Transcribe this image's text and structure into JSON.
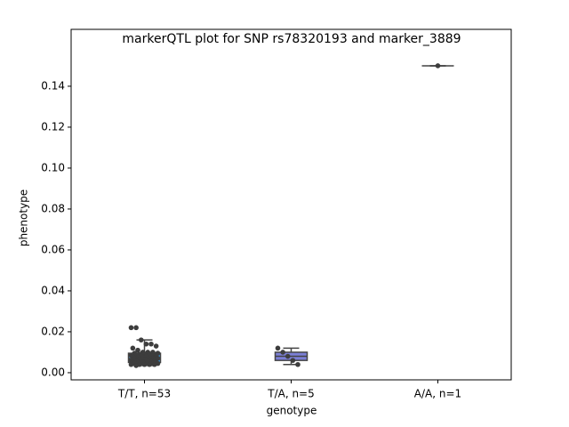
{
  "chart_data": {
    "type": "box",
    "title": "markerQTL plot for SNP rs78320193 and marker_3889",
    "xlabel": "genotype",
    "ylabel": "phenotype",
    "categories": [
      "T/T, n=53",
      "T/A, n=5",
      "A/A, n=1"
    ],
    "ylim": [
      -0.0035,
      0.1678
    ],
    "yticks": [
      {
        "value": 0,
        "label": "0.00"
      },
      0.02,
      0.04,
      0.06,
      0.08,
      {
        "value": 0.1,
        "label": "0.10"
      },
      0.12,
      0.14
    ],
    "point_color": "#3d3d3d",
    "boxes": [
      {
        "whisker_low": 0.0035,
        "q1": 0.005,
        "median": 0.007,
        "q3": 0.0095,
        "whisker_high": 0.016,
        "color": "#3ba3ec",
        "points": [
          0.022,
          0.022,
          0.016,
          0.014,
          0.014,
          0.013,
          0.012,
          0.011,
          0.01,
          0.01,
          0.01,
          0.0095,
          0.0095,
          0.009,
          0.009,
          0.009,
          0.009,
          0.0085,
          0.0085,
          0.008,
          0.008,
          0.008,
          0.008,
          0.008,
          0.0075,
          0.0075,
          0.007,
          0.007,
          0.007,
          0.007,
          0.0065,
          0.0065,
          0.006,
          0.006,
          0.006,
          0.006,
          0.0055,
          0.0055,
          0.0055,
          0.005,
          0.005,
          0.005,
          0.005,
          0.005,
          0.0045,
          0.0045,
          0.0045,
          0.004,
          0.004,
          0.004,
          0.004,
          0.004,
          0.0035
        ]
      },
      {
        "whisker_low": 0.004,
        "q1": 0.006,
        "median": 0.008,
        "q3": 0.01,
        "whisker_high": 0.012,
        "color": "#7b7fd6",
        "points": [
          0.012,
          0.01,
          0.008,
          0.006,
          0.004
        ]
      },
      {
        "whisker_low": 0.15,
        "q1": 0.15,
        "median": 0.15,
        "q3": 0.15,
        "whisker_high": 0.15,
        "points": [
          0.15
        ]
      }
    ]
  }
}
